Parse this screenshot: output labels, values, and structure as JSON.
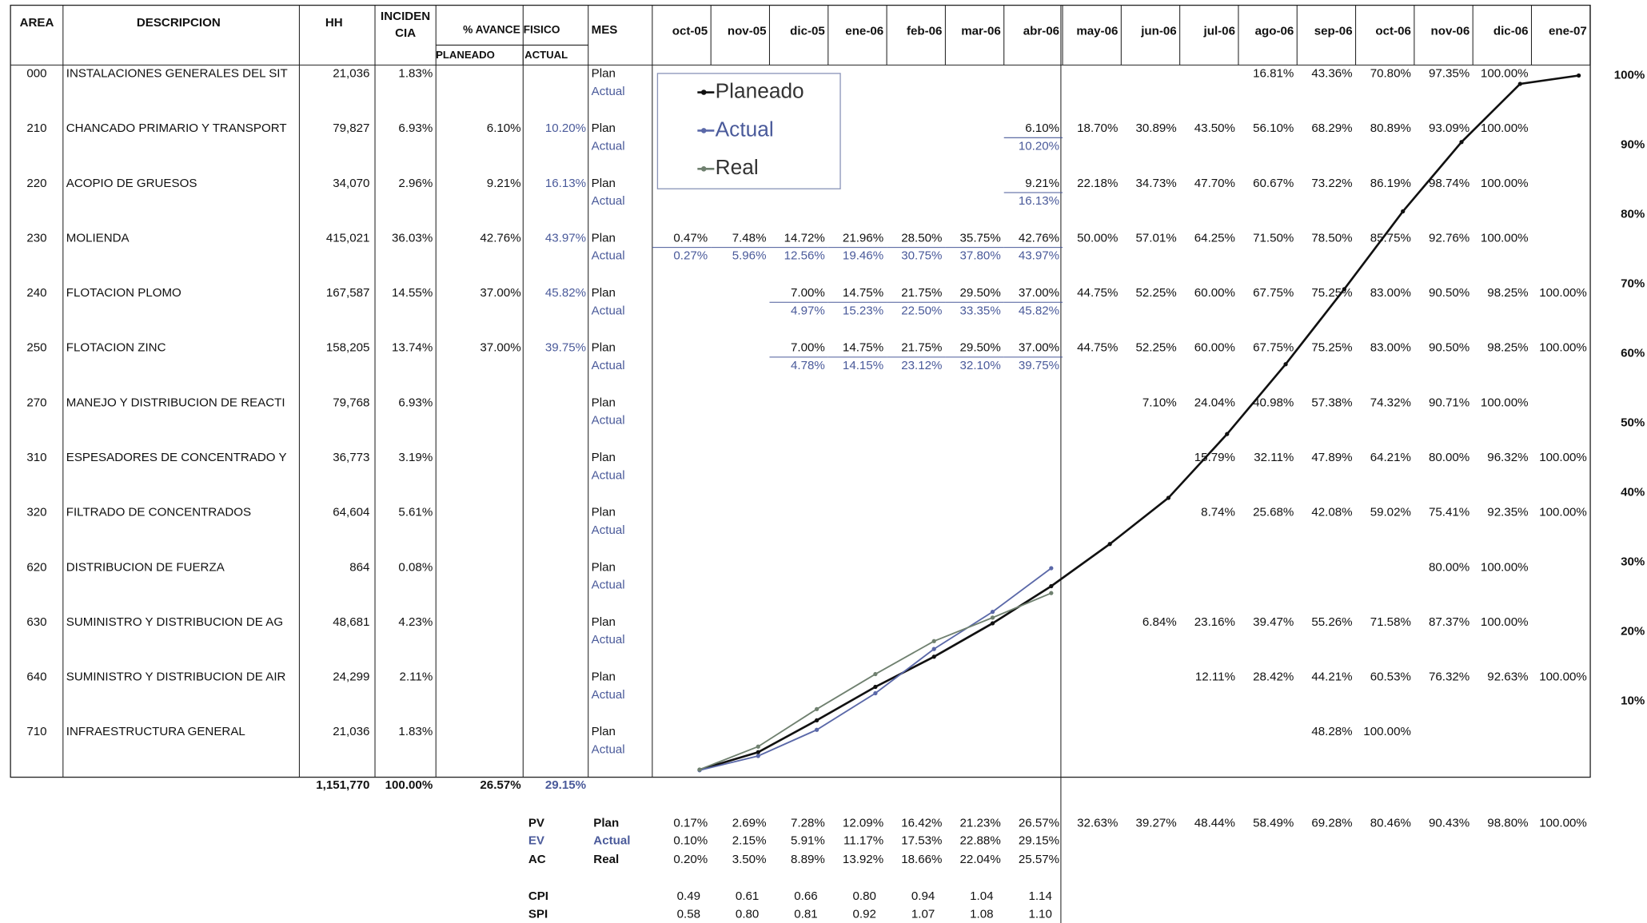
{
  "header": {
    "area": "AREA",
    "descripcion": "DESCRIPCION",
    "hh": "HH",
    "incidencia_1": "INCIDEN",
    "incidencia_2": "CIA",
    "avance": "% AVANCE FISICO",
    "planeado": "PLANEADO",
    "actual": "ACTUAL",
    "mes": "MES",
    "plan_label": "Plan",
    "actual_label": "Actual"
  },
  "months": [
    "oct-05",
    "nov-05",
    "dic-05",
    "ene-06",
    "feb-06",
    "mar-06",
    "abr-06",
    "may-06",
    "jun-06",
    "jul-06",
    "ago-06",
    "sep-06",
    "oct-06",
    "nov-06",
    "dic-06",
    "ene-07"
  ],
  "rows": [
    {
      "area": "000",
      "descripcion": "INSTALACIONES GENERALES DEL SIT",
      "hh": "21,036",
      "incidencia": "1.83%",
      "plan": [
        null,
        null,
        null,
        null,
        null,
        null,
        null,
        null,
        null,
        null,
        "16.81%",
        "43.36%",
        "70.80%",
        "97.35%",
        "100.00%",
        null
      ]
    },
    {
      "area": "210",
      "descripcion": "CHANCADO PRIMARIO Y TRANSPORT",
      "hh": "79,827",
      "incidencia": "6.93%",
      "avance_planeado": "6.10%",
      "avance_actual": "10.20%",
      "plan": [
        null,
        null,
        null,
        null,
        null,
        null,
        "6.10%",
        "18.70%",
        "30.89%",
        "43.50%",
        "56.10%",
        "68.29%",
        "80.89%",
        "93.09%",
        "100.00%",
        null
      ],
      "actual": [
        null,
        null,
        null,
        null,
        null,
        null,
        "10.20%"
      ]
    },
    {
      "area": "220",
      "descripcion": "ACOPIO DE GRUESOS",
      "hh": "34,070",
      "incidencia": "2.96%",
      "avance_planeado": "9.21%",
      "avance_actual": "16.13%",
      "plan": [
        null,
        null,
        null,
        null,
        null,
        null,
        "9.21%",
        "22.18%",
        "34.73%",
        "47.70%",
        "60.67%",
        "73.22%",
        "86.19%",
        "98.74%",
        "100.00%",
        null
      ],
      "actual": [
        null,
        null,
        null,
        null,
        null,
        null,
        "16.13%"
      ]
    },
    {
      "area": "230",
      "descripcion": "MOLIENDA",
      "hh": "415,021",
      "incidencia": "36.03%",
      "avance_planeado": "42.76%",
      "avance_actual": "43.97%",
      "plan": [
        "0.47%",
        "7.48%",
        "14.72%",
        "21.96%",
        "28.50%",
        "35.75%",
        "42.76%",
        "50.00%",
        "57.01%",
        "64.25%",
        "71.50%",
        "78.50%",
        "85.75%",
        "92.76%",
        "100.00%",
        null
      ],
      "actual": [
        "0.27%",
        "5.96%",
        "12.56%",
        "19.46%",
        "30.75%",
        "37.80%",
        "43.97%"
      ]
    },
    {
      "area": "240",
      "descripcion": "FLOTACION PLOMO",
      "hh": "167,587",
      "incidencia": "14.55%",
      "avance_planeado": "37.00%",
      "avance_actual": "45.82%",
      "plan": [
        null,
        null,
        "7.00%",
        "14.75%",
        "21.75%",
        "29.50%",
        "37.00%",
        "44.75%",
        "52.25%",
        "60.00%",
        "67.75%",
        "75.25%",
        "83.00%",
        "90.50%",
        "98.25%",
        "100.00%"
      ],
      "actual": [
        null,
        null,
        "4.97%",
        "15.23%",
        "22.50%",
        "33.35%",
        "45.82%"
      ]
    },
    {
      "area": "250",
      "descripcion": "FLOTACION ZINC",
      "hh": "158,205",
      "incidencia": "13.74%",
      "avance_planeado": "37.00%",
      "avance_actual": "39.75%",
      "plan": [
        null,
        null,
        "7.00%",
        "14.75%",
        "21.75%",
        "29.50%",
        "37.00%",
        "44.75%",
        "52.25%",
        "60.00%",
        "67.75%",
        "75.25%",
        "83.00%",
        "90.50%",
        "98.25%",
        "100.00%"
      ],
      "actual": [
        null,
        null,
        "4.78%",
        "14.15%",
        "23.12%",
        "32.10%",
        "39.75%"
      ]
    },
    {
      "area": "270",
      "descripcion": "MANEJO Y DISTRIBUCION DE REACTI",
      "hh": "79,768",
      "incidencia": "6.93%",
      "plan": [
        null,
        null,
        null,
        null,
        null,
        null,
        null,
        null,
        "7.10%",
        "24.04%",
        "40.98%",
        "57.38%",
        "74.32%",
        "90.71%",
        "100.00%",
        null
      ]
    },
    {
      "area": "310",
      "descripcion": "ESPESADORES DE CONCENTRADO Y",
      "hh": "36,773",
      "incidencia": "3.19%",
      "plan": [
        null,
        null,
        null,
        null,
        null,
        null,
        null,
        null,
        null,
        "15.79%",
        "32.11%",
        "47.89%",
        "64.21%",
        "80.00%",
        "96.32%",
        "100.00%"
      ]
    },
    {
      "area": "320",
      "descripcion": "FILTRADO DE CONCENTRADOS",
      "hh": "64,604",
      "incidencia": "5.61%",
      "plan": [
        null,
        null,
        null,
        null,
        null,
        null,
        null,
        null,
        null,
        "8.74%",
        "25.68%",
        "42.08%",
        "59.02%",
        "75.41%",
        "92.35%",
        "100.00%"
      ]
    },
    {
      "area": "620",
      "descripcion": "DISTRIBUCION DE FUERZA",
      "hh": "864",
      "incidencia": "0.08%",
      "plan": [
        null,
        null,
        null,
        null,
        null,
        null,
        null,
        null,
        null,
        null,
        null,
        null,
        null,
        "80.00%",
        "100.00%",
        null
      ]
    },
    {
      "area": "630",
      "descripcion": "SUMINISTRO Y DISTRIBUCION DE AG",
      "hh": "48,681",
      "incidencia": "4.23%",
      "plan": [
        null,
        null,
        null,
        null,
        null,
        null,
        null,
        null,
        "6.84%",
        "23.16%",
        "39.47%",
        "55.26%",
        "71.58%",
        "87.37%",
        "100.00%",
        null
      ]
    },
    {
      "area": "640",
      "descripcion": "SUMINISTRO Y DISTRIBUCION DE AIR",
      "hh": "24,299",
      "incidencia": "2.11%",
      "plan": [
        null,
        null,
        null,
        null,
        null,
        null,
        null,
        null,
        null,
        "12.11%",
        "28.42%",
        "44.21%",
        "60.53%",
        "76.32%",
        "92.63%",
        "100.00%"
      ]
    },
    {
      "area": "710",
      "descripcion": "INFRAESTRUCTURA GENERAL",
      "hh": "21,036",
      "incidencia": "1.83%",
      "plan": [
        null,
        null,
        null,
        null,
        null,
        null,
        null,
        null,
        null,
        null,
        null,
        "48.28%",
        "100.00%",
        null,
        null,
        null
      ]
    }
  ],
  "totals": {
    "hh": "1,151,770",
    "incidencia": "100.00%",
    "avance_planeado": "26.57%",
    "avance_actual": "29.15%"
  },
  "curves": [
    {
      "name": "Planeado",
      "code": "PV",
      "label": "Plan",
      "color": "#111111",
      "values": [
        0.17,
        2.69,
        7.28,
        12.09,
        16.42,
        21.23,
        26.57,
        32.63,
        39.27,
        48.44,
        58.49,
        69.28,
        80.46,
        90.43,
        98.8,
        100.0
      ],
      "value_labels": [
        "0.17%",
        "2.69%",
        "7.28%",
        "12.09%",
        "16.42%",
        "21.23%",
        "26.57%",
        "32.63%",
        "39.27%",
        "48.44%",
        "58.49%",
        "69.28%",
        "80.46%",
        "90.43%",
        "98.80%",
        "100.00%"
      ]
    },
    {
      "name": "Actual",
      "code": "EV",
      "label": "Actual",
      "color": "#5a68a8",
      "values": [
        0.1,
        2.15,
        5.91,
        11.17,
        17.53,
        22.88,
        29.15
      ],
      "value_labels": [
        "0.10%",
        "2.15%",
        "5.91%",
        "11.17%",
        "17.53%",
        "22.88%",
        "29.15%"
      ]
    },
    {
      "name": "Real",
      "code": "AC",
      "label": "Real",
      "color": "#6f806f",
      "values": [
        0.2,
        3.5,
        8.89,
        13.92,
        18.66,
        22.04,
        25.57
      ],
      "value_labels": [
        "0.20%",
        "3.50%",
        "8.89%",
        "13.92%",
        "18.66%",
        "22.04%",
        "25.57%"
      ]
    }
  ],
  "indices": [
    {
      "name": "CPI",
      "values": [
        "0.49",
        "0.61",
        "0.66",
        "0.80",
        "0.94",
        "1.04",
        "1.14"
      ]
    },
    {
      "name": "SPI",
      "values": [
        "0.58",
        "0.80",
        "0.81",
        "0.92",
        "1.07",
        "1.08",
        "1.10"
      ]
    }
  ],
  "axis": {
    "ylim": [
      0,
      100
    ],
    "yticks": [
      {
        "value": 10,
        "label": "10%"
      },
      {
        "value": 20,
        "label": "20%"
      },
      {
        "value": 30,
        "label": "30%"
      },
      {
        "value": 40,
        "label": "40%"
      },
      {
        "value": 50,
        "label": "50%"
      },
      {
        "value": 60,
        "label": "60%"
      },
      {
        "value": 70,
        "label": "70%"
      },
      {
        "value": 80,
        "label": "80%"
      },
      {
        "value": 90,
        "label": "90%"
      },
      {
        "value": 100,
        "label": "100%"
      }
    ]
  }
}
